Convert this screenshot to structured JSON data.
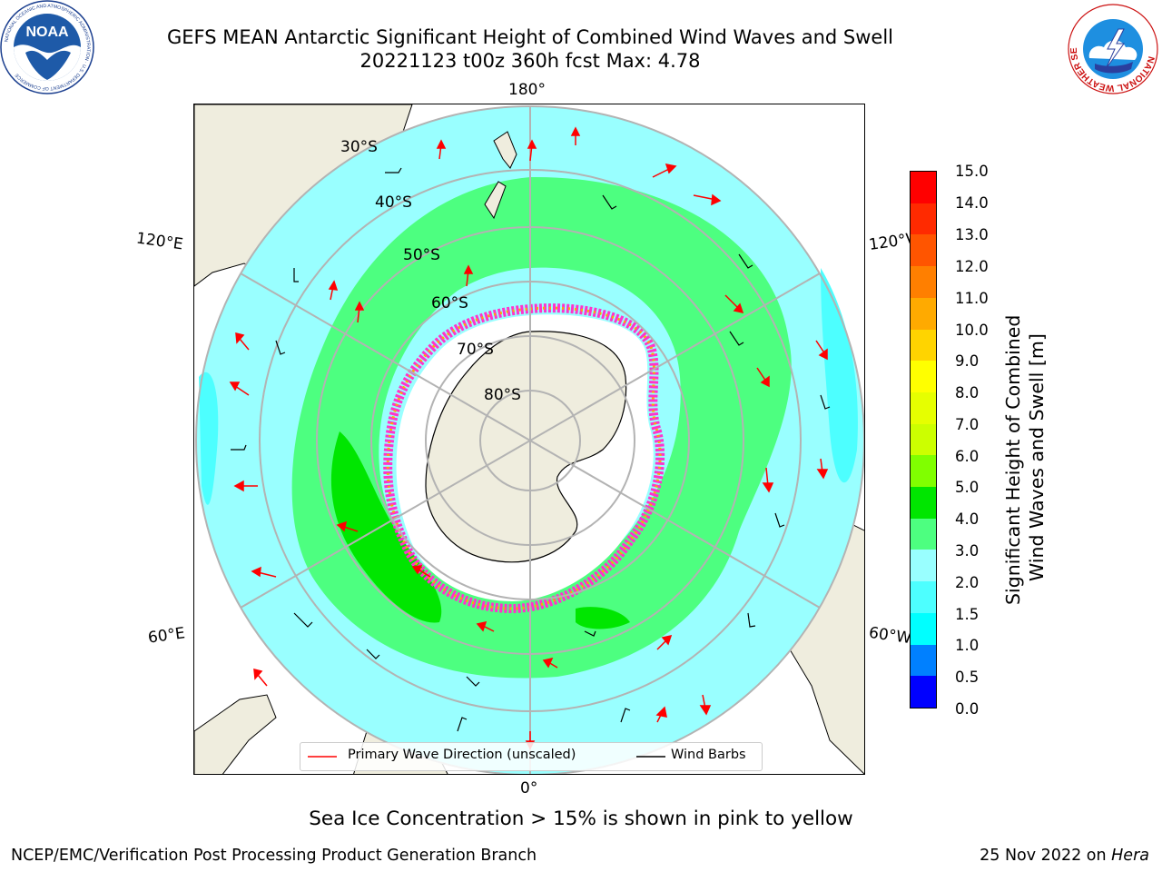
{
  "title": {
    "line1": "GEFS MEAN Antarctic Significant Height of Combined Wind Waves and Swell",
    "line2": "20221123 t00z 360h fcst   Max: 4.78"
  },
  "map": {
    "projection": "south-polar-stereographic",
    "longitude_labels": [
      "180°",
      "120°E",
      "120°W",
      "60°E",
      "60°W",
      "0°"
    ],
    "latitude_labels": [
      "30°S",
      "40°S",
      "50°S",
      "60°S",
      "70°S",
      "80°S"
    ]
  },
  "legend": {
    "wave_direction": "Primary Wave Direction (unscaled)",
    "wind_barbs": "Wind Barbs"
  },
  "colorbar": {
    "label_line1": "Significant Height of Combined",
    "label_line2": "Wind Waves and Swell [m]",
    "ticks": [
      "15.0",
      "14.0",
      "13.0",
      "12.0",
      "11.0",
      "10.0",
      "9.0",
      "8.0",
      "7.0",
      "6.0",
      "5.0",
      "4.0",
      "3.0",
      "2.0",
      "1.5",
      "1.0",
      "0.5",
      "0.0"
    ],
    "colors": [
      "#ff0000",
      "#ff2a00",
      "#ff5500",
      "#ff7f00",
      "#ffaa00",
      "#ffd400",
      "#ffff00",
      "#e6ff00",
      "#ccff00",
      "#80ff00",
      "#00e600",
      "#4dff80",
      "#99ffff",
      "#4dffff",
      "#00ffff",
      "#0080ff",
      "#0000ff"
    ]
  },
  "caption": "Sea Ice Concentration > 15% is shown in pink to yellow",
  "footer": {
    "left": "NCEP/EMC/Verification Post Processing Product Generation Branch",
    "date": "25 Nov 2022 on ",
    "host": "Hera"
  },
  "logos": {
    "noaa_text": "NOAA",
    "noaa_ring": "NATIONAL OCEANIC AND ATMOSPHERIC ADMINISTRATION · U.S. DEPARTMENT OF COMMERCE",
    "nws_ring": "NATIONAL WEATHER SERVICE"
  }
}
